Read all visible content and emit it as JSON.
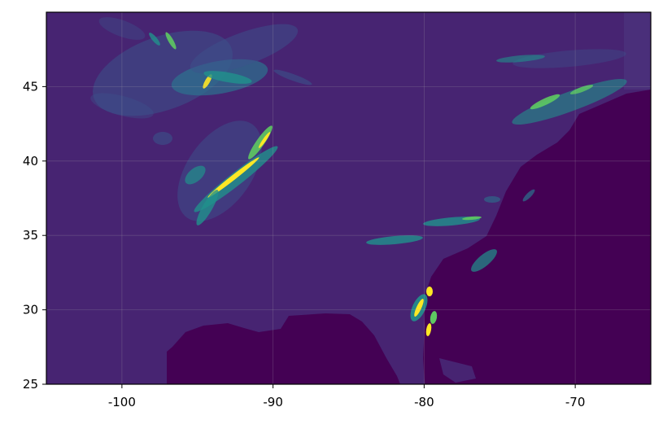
{
  "chart_data": {
    "type": "heatmap",
    "title": "",
    "xlabel": "",
    "ylabel": "",
    "xlim": [
      -105,
      -65
    ],
    "ylim": [
      25,
      50
    ],
    "xticks": [
      -100,
      -90,
      -80,
      -70
    ],
    "yticks": [
      25,
      30,
      35,
      40,
      45
    ],
    "xtick_labels": [
      "-100",
      "-90",
      "-80",
      "-70"
    ],
    "ytick_labels": [
      "25",
      "30",
      "35",
      "40",
      "45"
    ],
    "grid": true,
    "colormap": "viridis",
    "colors": {
      "background": "#472472",
      "masked": "#440154",
      "high": "#fde725",
      "mid": "#21918c"
    }
  }
}
